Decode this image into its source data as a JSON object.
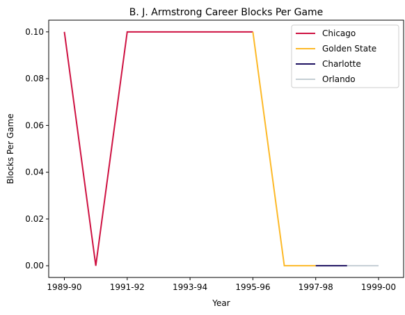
{
  "chart_data": {
    "type": "line",
    "title": "B. J. Armstrong Career Blocks Per Game",
    "xlabel": "Year",
    "ylabel": "Blocks Per Game",
    "x_categories": [
      "1989-90",
      "1990-91",
      "1991-92",
      "1992-93",
      "1993-94",
      "1994-95",
      "1995-96",
      "1996-97",
      "1997-98",
      "1998-99",
      "1999-00"
    ],
    "x_tick_labels": [
      "1989-90",
      "1991-92",
      "1993-94",
      "1995-96",
      "1997-98",
      "1999-00"
    ],
    "ylim": [
      -0.005,
      0.105
    ],
    "y_ticks": [
      0.0,
      0.02,
      0.04,
      0.06,
      0.08,
      0.1
    ],
    "y_tick_labels": [
      "0.00",
      "0.02",
      "0.04",
      "0.06",
      "0.08",
      "0.10"
    ],
    "grid": false,
    "legend_position": "top-right",
    "series": [
      {
        "name": "Chicago",
        "color": "#CE1141",
        "x": [
          "1989-90",
          "1990-91",
          "1991-92",
          "1992-93",
          "1993-94",
          "1994-95",
          "1995-96"
        ],
        "values": [
          0.1,
          0.0,
          0.1,
          0.1,
          0.1,
          0.1,
          0.1
        ]
      },
      {
        "name": "Golden State",
        "color": "#FDB927",
        "x": [
          "1995-96",
          "1996-97",
          "1997-98"
        ],
        "values": [
          0.1,
          0.0,
          0.0
        ]
      },
      {
        "name": "Charlotte",
        "color": "#1D1160",
        "x": [
          "1997-98",
          "1998-99"
        ],
        "values": [
          0.0,
          0.0
        ]
      },
      {
        "name": "Orlando",
        "color": "#C4CED4",
        "x": [
          "1998-99",
          "1999-00"
        ],
        "values": [
          0.0,
          0.0
        ]
      }
    ]
  }
}
